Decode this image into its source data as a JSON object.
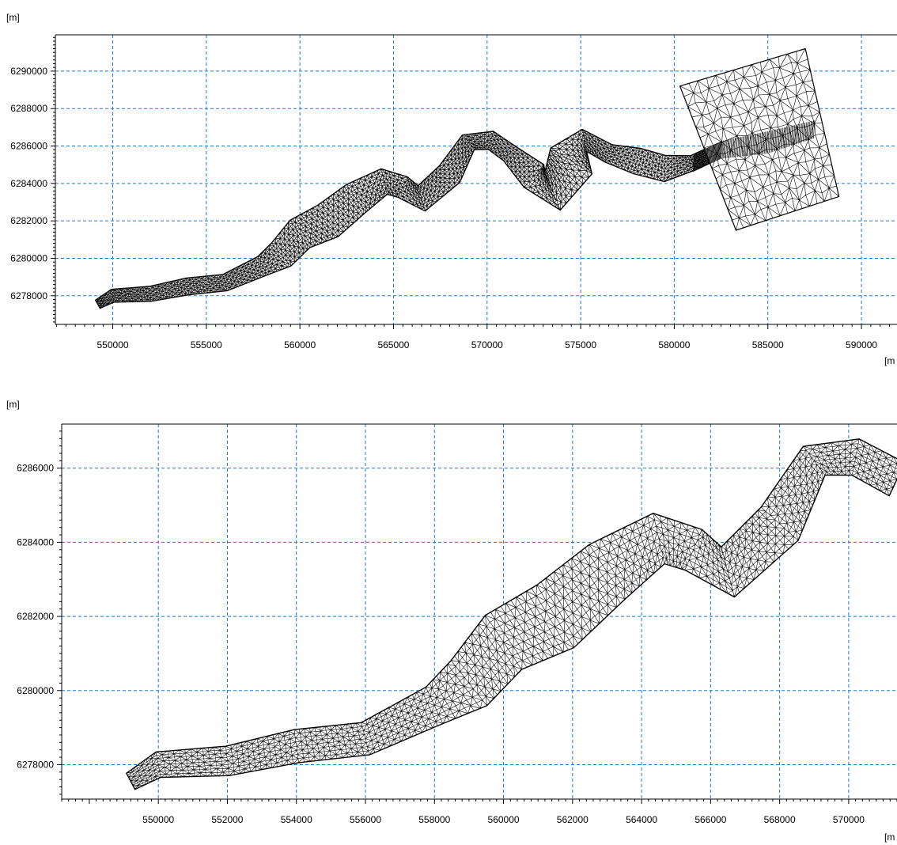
{
  "colors": {
    "grid": "#1a78d6",
    "mesh": "#000000",
    "axis": "#000000"
  },
  "chart_data": [
    {
      "type": "scatter",
      "title": "",
      "y_unit_label": "[m]",
      "x_unit_label": "[m",
      "xlim": [
        546935,
        591900
      ],
      "ylim": [
        6276470,
        6291940
      ],
      "x_ticks": [
        550000,
        555000,
        560000,
        565000,
        570000,
        575000,
        580000,
        585000,
        590000
      ],
      "x_tick_labels": [
        "550000",
        "555000",
        "560000",
        "565000",
        "570000",
        "575000",
        "580000",
        "585000",
        "590000"
      ],
      "y_ticks": [
        6278000,
        6280000,
        6282000,
        6284000,
        6286000,
        6288000,
        6290000
      ],
      "y_tick_labels": [
        "6278000",
        "6280000",
        "6282000",
        "6284000",
        "6286000",
        "6288000",
        "6290000"
      ],
      "grid": true,
      "mesh": {
        "channel": [
          [
            549200,
            6277550
          ],
          [
            550000,
            6278000
          ],
          [
            552000,
            6278100
          ],
          [
            554000,
            6278500
          ],
          [
            556000,
            6278700
          ],
          [
            558000,
            6279600
          ],
          [
            559000,
            6280200
          ],
          [
            560000,
            6281300
          ],
          [
            561500,
            6282000
          ],
          [
            563000,
            6283200
          ],
          [
            564500,
            6284100
          ],
          [
            565500,
            6283800
          ],
          [
            566500,
            6283200
          ],
          [
            568000,
            6284500
          ],
          [
            569000,
            6286200
          ],
          [
            570200,
            6286300
          ],
          [
            571200,
            6285600
          ],
          [
            572500,
            6284400
          ],
          [
            573500,
            6283600
          ],
          [
            574500,
            6285200
          ],
          [
            575200,
            6286300
          ],
          [
            576500,
            6285600
          ],
          [
            578000,
            6285200
          ],
          [
            579500,
            6284800
          ],
          [
            581000,
            6285100
          ],
          [
            582500,
            6285800
          ],
          [
            585000,
            6286200
          ],
          [
            587500,
            6286900
          ]
        ],
        "widths": [
          250,
          350,
          400,
          450,
          450,
          550,
          800,
          900,
          1000,
          900,
          700,
          600,
          700,
          700,
          500,
          500,
          500,
          800,
          1100,
          1300,
          600,
          500,
          700,
          700,
          400,
          400,
          500,
          400
        ],
        "offshore_box": [
          [
            580300,
            6289200
          ],
          [
            587000,
            6291200
          ],
          [
            588800,
            6283300
          ],
          [
            583300,
            6281500
          ]
        ],
        "offshore_box_points": [
          [
            580300,
            6289200
          ],
          [
            587000,
            6291200
          ],
          [
            583300,
            6281500
          ],
          [
            588800,
            6283300
          ]
        ]
      }
    },
    {
      "type": "scatter",
      "title": "",
      "y_unit_label": "[m]",
      "x_unit_label": "[m",
      "xlim": [
        547200,
        571400
      ],
      "ylim": [
        6277070,
        6287190
      ],
      "x_ticks": [
        550000,
        552000,
        554000,
        556000,
        558000,
        560000,
        562000,
        564000,
        566000,
        568000,
        570000
      ],
      "x_tick_labels": [
        "550000",
        "552000",
        "554000",
        "556000",
        "558000",
        "560000",
        "562000",
        "564000",
        "566000",
        "568000",
        "570000"
      ],
      "y_ticks": [
        6278000,
        6280000,
        6282000,
        6284000,
        6286000
      ],
      "y_tick_labels": [
        "6278000",
        "6280000",
        "6282000",
        "6284000",
        "6286000"
      ],
      "grid": true,
      "mesh": {
        "channel": [
          [
            549200,
            6277550
          ],
          [
            550000,
            6278000
          ],
          [
            552000,
            6278100
          ],
          [
            554000,
            6278500
          ],
          [
            556000,
            6278700
          ],
          [
            558000,
            6279600
          ],
          [
            559000,
            6280200
          ],
          [
            560000,
            6281300
          ],
          [
            561500,
            6282000
          ],
          [
            563000,
            6283200
          ],
          [
            564500,
            6284100
          ],
          [
            565500,
            6283800
          ],
          [
            566500,
            6283200
          ],
          [
            568000,
            6284500
          ],
          [
            569000,
            6286200
          ],
          [
            570200,
            6286300
          ],
          [
            571400,
            6285700
          ]
        ],
        "widths": [
          250,
          350,
          400,
          450,
          450,
          550,
          800,
          900,
          1000,
          900,
          700,
          600,
          700,
          700,
          500,
          500,
          500
        ]
      }
    }
  ]
}
